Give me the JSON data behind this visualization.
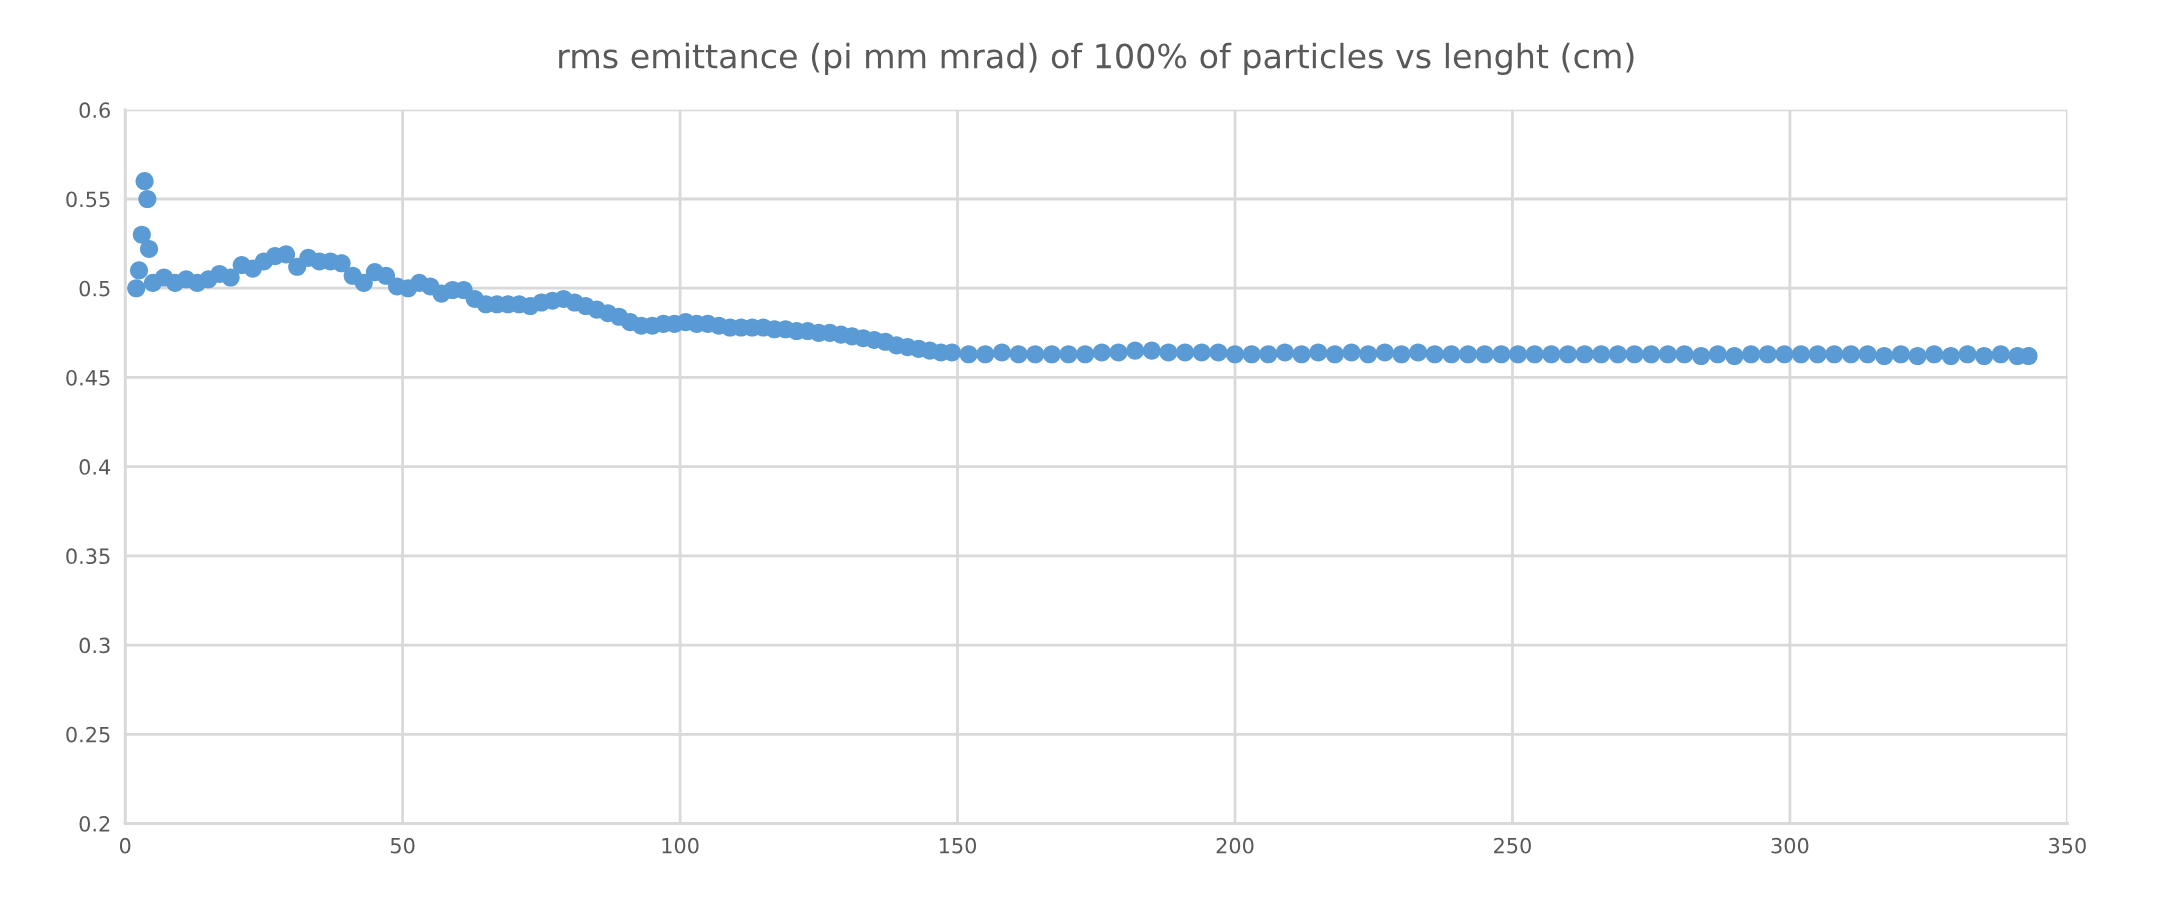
{
  "chart_data": {
    "type": "scatter",
    "title": "rms emittance (pi mm mrad) of 100% of particles vs lenght (cm)",
    "x": [
      2,
      2.5,
      3,
      3.5,
      4,
      4.3,
      5,
      7,
      9,
      11,
      13,
      15,
      17,
      19,
      21,
      23,
      25,
      27,
      29,
      31,
      33,
      35,
      37,
      39,
      41,
      43,
      45,
      47,
      49,
      51,
      53,
      55,
      57,
      59,
      61,
      63,
      65,
      67,
      69,
      71,
      73,
      75,
      77,
      79,
      81,
      83,
      85,
      87,
      89,
      91,
      93,
      95,
      97,
      99,
      101,
      103,
      105,
      107,
      109,
      111,
      113,
      115,
      117,
      119,
      121,
      123,
      125,
      127,
      129,
      131,
      133,
      135,
      137,
      139,
      141,
      143,
      145,
      147,
      149,
      152,
      155,
      158,
      161,
      164,
      167,
      170,
      173,
      176,
      179,
      182,
      185,
      188,
      191,
      194,
      197,
      200,
      203,
      206,
      209,
      212,
      215,
      218,
      221,
      224,
      227,
      230,
      233,
      236,
      239,
      242,
      245,
      248,
      251,
      254,
      257,
      260,
      263,
      266,
      269,
      272,
      275,
      278,
      281,
      284,
      287,
      290,
      293,
      296,
      299,
      302,
      305,
      308,
      311,
      314,
      317,
      320,
      323,
      326,
      329,
      332,
      335,
      338,
      341,
      343
    ],
    "series": [
      {
        "color": "#5b9bd5",
        "values": [
          0.5,
          0.51,
          0.53,
          0.56,
          0.55,
          0.522,
          0.503,
          0.506,
          0.503,
          0.505,
          0.503,
          0.505,
          0.508,
          0.506,
          0.513,
          0.511,
          0.515,
          0.518,
          0.519,
          0.512,
          0.517,
          0.515,
          0.515,
          0.514,
          0.507,
          0.503,
          0.509,
          0.507,
          0.501,
          0.5,
          0.503,
          0.501,
          0.497,
          0.499,
          0.499,
          0.494,
          0.491,
          0.491,
          0.491,
          0.491,
          0.49,
          0.492,
          0.493,
          0.494,
          0.492,
          0.49,
          0.488,
          0.486,
          0.484,
          0.481,
          0.479,
          0.479,
          0.48,
          0.48,
          0.481,
          0.48,
          0.48,
          0.479,
          0.478,
          0.478,
          0.478,
          0.478,
          0.477,
          0.477,
          0.476,
          0.476,
          0.475,
          0.475,
          0.474,
          0.473,
          0.472,
          0.471,
          0.47,
          0.468,
          0.467,
          0.466,
          0.465,
          0.464,
          0.464,
          0.463,
          0.463,
          0.464,
          0.463,
          0.463,
          0.463,
          0.463,
          0.463,
          0.464,
          0.464,
          0.465,
          0.465,
          0.464,
          0.464,
          0.464,
          0.464,
          0.463,
          0.463,
          0.463,
          0.464,
          0.463,
          0.464,
          0.463,
          0.464,
          0.463,
          0.464,
          0.463,
          0.464,
          0.463,
          0.463,
          0.463,
          0.463,
          0.463,
          0.463,
          0.463,
          0.463,
          0.463,
          0.463,
          0.463,
          0.463,
          0.463,
          0.463,
          0.463,
          0.463,
          0.462,
          0.463,
          0.462,
          0.463,
          0.463,
          0.463,
          0.463,
          0.463,
          0.463,
          0.463,
          0.463,
          0.462,
          0.463,
          0.462,
          0.463,
          0.462,
          0.463,
          0.462,
          0.463,
          0.462,
          0.462
        ]
      }
    ],
    "xlim": [
      0,
      350
    ],
    "xticks": [
      0,
      50,
      100,
      150,
      200,
      250,
      300,
      350
    ],
    "ylim": [
      0.2,
      0.6
    ],
    "yticks": [
      0.2,
      0.25,
      0.3,
      0.35,
      0.4,
      0.45,
      0.5,
      0.55,
      0.6
    ],
    "grid": true,
    "marker": "circle",
    "legend": false
  }
}
